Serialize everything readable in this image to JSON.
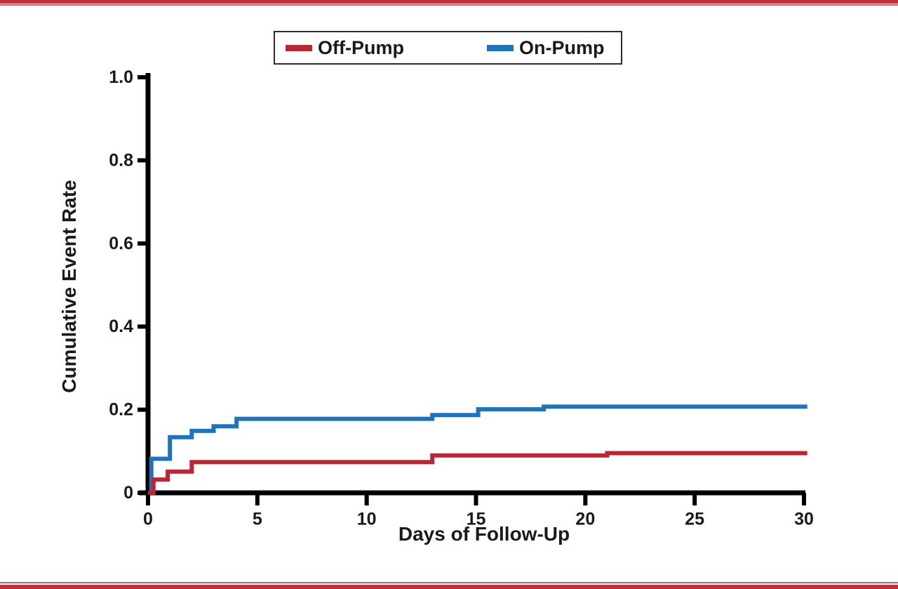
{
  "theme": {
    "background": "#ffffff",
    "text_color": "#1a1a1a",
    "axis_color": "#000000",
    "legend_border": "#2b2b2b",
    "rule_dark_red": "#C42F38",
    "rule_light_red": "#CE6167",
    "off_pump_red": "#BE2431",
    "on_pump_blue": "#1C75BC"
  },
  "legend": {
    "items": [
      {
        "label": "Off-Pump"
      },
      {
        "label": "On-Pump"
      }
    ]
  },
  "chart_data": {
    "type": "line",
    "subtype": "step",
    "title": "",
    "xlabel": "Days of Follow-Up",
    "ylabel": "Cumulative Event Rate",
    "xlim": [
      0,
      30
    ],
    "ylim": [
      0,
      1.0
    ],
    "grid": false,
    "legend_position": "top-center",
    "xticks": {
      "values": [
        0,
        5,
        10,
        15,
        20,
        25,
        30
      ],
      "labels": [
        "0",
        "5",
        "10",
        "15",
        "20",
        "25",
        "30"
      ]
    },
    "yticks": {
      "values": [
        0,
        0.2,
        0.4,
        0.6,
        0.8,
        1.0
      ],
      "labels": [
        "0",
        "0.2",
        "0.4",
        "0.6",
        "0.8",
        "1.0"
      ]
    },
    "series": [
      {
        "name": "On-Pump",
        "color": "#1C75BC",
        "points": [
          [
            0,
            0
          ],
          [
            0.15,
            0.082
          ],
          [
            1,
            0.134
          ],
          [
            2,
            0.149
          ],
          [
            3,
            0.16
          ],
          [
            4.05,
            0.178
          ],
          [
            13,
            0.187
          ],
          [
            15.1,
            0.201
          ],
          [
            18.1,
            0.2075
          ],
          [
            30.15,
            0.2075
          ]
        ]
      },
      {
        "name": "Off-Pump",
        "color": "#BE2431",
        "points": [
          [
            0,
            0
          ],
          [
            0.25,
            0.032
          ],
          [
            0.9,
            0.051
          ],
          [
            2,
            0.074
          ],
          [
            13,
            0.09
          ],
          [
            21,
            0.0955
          ],
          [
            30.15,
            0.0955
          ]
        ]
      }
    ]
  }
}
